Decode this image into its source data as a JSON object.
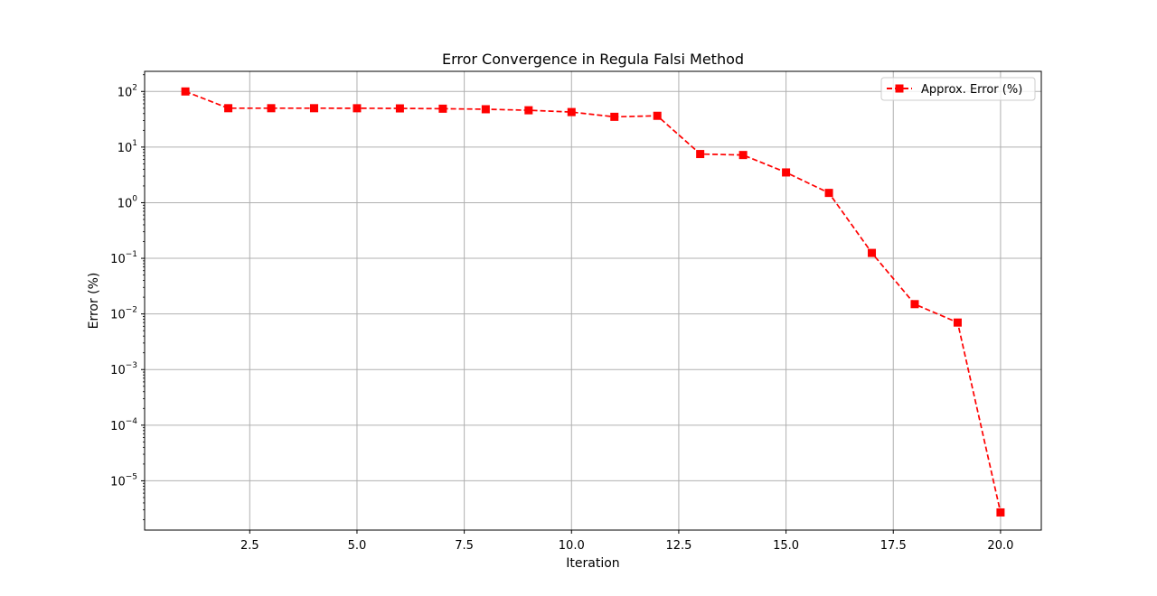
{
  "chart_data": {
    "type": "line",
    "title": "Error Convergence in Regula Falsi Method",
    "xlabel": "Iteration",
    "ylabel": "Error (%)",
    "yscale": "log",
    "xlim": [
      0.05,
      20.95
    ],
    "ylim": [
      1.3e-06,
      230
    ],
    "x_ticks": [
      2.5,
      5.0,
      7.5,
      10.0,
      12.5,
      15.0,
      17.5,
      20.0
    ],
    "x_tick_labels": [
      "2.5",
      "5.0",
      "7.5",
      "10.0",
      "12.5",
      "15.0",
      "17.5",
      "20.0"
    ],
    "y_ticks": [
      1e-05,
      0.0001,
      0.001,
      0.01,
      0.1,
      1,
      10,
      100
    ],
    "y_tick_labels": [
      {
        "base": "10",
        "exp": "−5"
      },
      {
        "base": "10",
        "exp": "−4"
      },
      {
        "base": "10",
        "exp": "−3"
      },
      {
        "base": "10",
        "exp": "−2"
      },
      {
        "base": "10",
        "exp": "−1"
      },
      {
        "base": "10",
        "exp": "0"
      },
      {
        "base": "10",
        "exp": "1"
      },
      {
        "base": "10",
        "exp": "2"
      }
    ],
    "grid": true,
    "legend_position": "top-right",
    "series": [
      {
        "name": "Approx. Error (%)",
        "color": "#ff0000",
        "line_style": "dashed",
        "marker": "square",
        "x": [
          1,
          2,
          3,
          4,
          5,
          6,
          7,
          8,
          9,
          10,
          11,
          12,
          13,
          14,
          15,
          16,
          17,
          18,
          19,
          20
        ],
        "y": [
          100,
          50,
          50,
          50,
          49.9,
          49.6,
          49,
          47.9,
          45.9,
          42.6,
          35,
          36.5,
          7.5,
          7.2,
          3.5,
          1.5,
          0.125,
          0.015,
          0.007,
          2.7e-06
        ]
      }
    ]
  }
}
